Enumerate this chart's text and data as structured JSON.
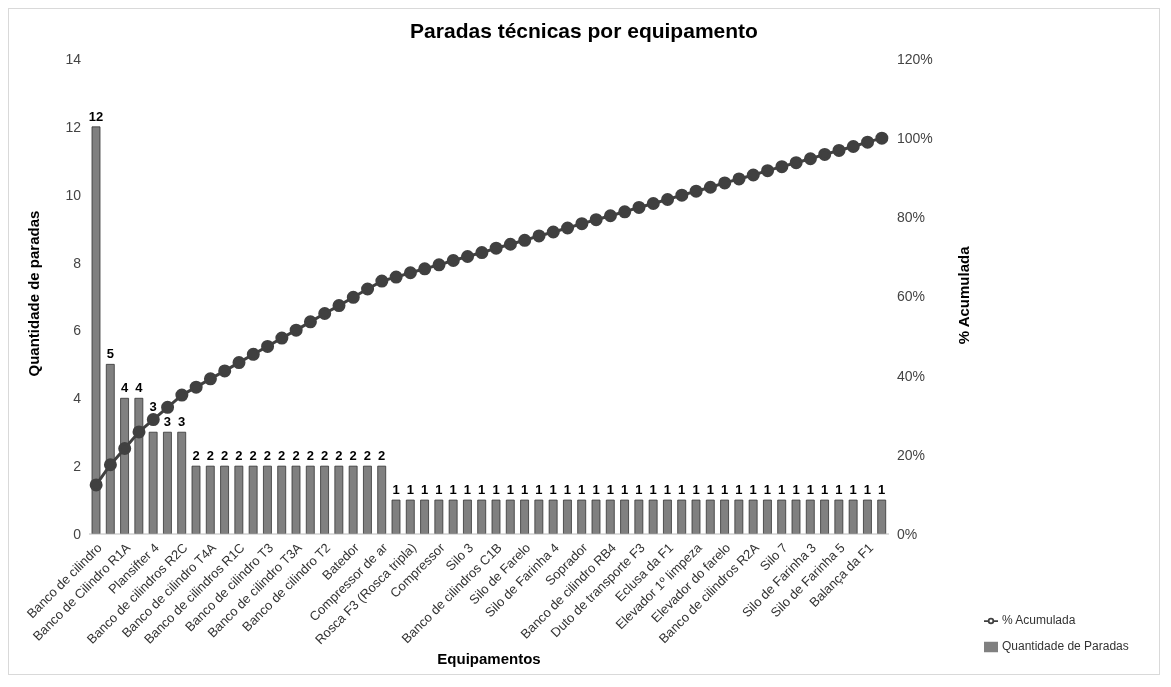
{
  "chart_data": {
    "type": "bar",
    "title": "Paradas técnicas por equipamento",
    "xlabel": "Equipamentos",
    "ylabel": "Quantidade de paradas",
    "y2label": "% Acumulada",
    "categories": [
      "Banco de cilindro",
      null,
      "Banco de Cilindro R1A",
      null,
      "Plansifter 4",
      null,
      "Banco de cilindros R2C",
      null,
      "Banco de cilindro T4A",
      null,
      "Banco de cilindros R1C",
      null,
      "Banco de cilindro T3",
      null,
      "Banco de cilindro T3A",
      null,
      "Banco de cilindro T2",
      null,
      "Batedor",
      null,
      "Compressor de ar",
      null,
      "Rosca F3 (Rosca tripla)",
      null,
      "Compressor",
      null,
      "Silo 3",
      null,
      "Banco de cilindros C1B",
      null,
      "Silo de Farelo",
      null,
      "Silo de Farinha 4",
      null,
      "Soprador",
      null,
      "Banco de cilindro RB4",
      null,
      "Duto de transporte F3",
      null,
      "Eclusa da F1",
      null,
      "Elevador 1º limpeza",
      null,
      "Elevador do farelo",
      null,
      "Banco de cilindros R2A",
      null,
      "Silo 7",
      null,
      "Silo de Farinha 3",
      null,
      "Silo de Farinha 5",
      null,
      "Balança da F1",
      null
    ],
    "series": [
      {
        "name": "Quantidade de Paradas",
        "color": "#808080",
        "values": [
          12,
          5,
          4,
          4,
          3,
          3,
          3,
          2,
          2,
          2,
          2,
          2,
          2,
          2,
          2,
          2,
          2,
          2,
          2,
          2,
          2,
          1,
          1,
          1,
          1,
          1,
          1,
          1,
          1,
          1,
          1,
          1,
          1,
          1,
          1,
          1,
          1,
          1,
          1,
          1,
          1,
          1,
          1,
          1,
          1,
          1,
          1,
          1,
          1,
          1,
          1,
          1,
          1,
          1,
          1,
          1
        ],
        "value_labels": [
          "12",
          "5",
          "4",
          "4",
          "3",
          "3",
          "3",
          "2",
          "2",
          "2",
          "2",
          "2",
          "2",
          "2",
          "2",
          "2",
          "2",
          "2",
          "2",
          "2",
          "2",
          "1",
          "1",
          "1",
          "1",
          "1",
          "1",
          "1",
          "1",
          "1",
          "1",
          "1",
          "1",
          "1",
          "1",
          "1",
          "1",
          "1",
          "1",
          "1",
          "1",
          "1",
          "1",
          "1",
          "1",
          "1",
          "1",
          "1",
          "1",
          "1",
          "1",
          "1",
          "1",
          "1",
          "1",
          "1"
        ]
      },
      {
        "name": "% Acumulada",
        "type": "line",
        "axis": "y2",
        "color": "#404040",
        "marker": "circle",
        "values": [
          12.4,
          17.5,
          21.6,
          25.8,
          28.9,
          32.0,
          35.1,
          37.1,
          39.2,
          41.2,
          43.3,
          45.4,
          47.4,
          49.5,
          51.5,
          53.6,
          55.7,
          57.7,
          59.8,
          61.9,
          63.9,
          64.9,
          66.0,
          67.0,
          68.0,
          69.1,
          70.1,
          71.1,
          72.2,
          73.2,
          74.2,
          75.3,
          76.3,
          77.3,
          78.4,
          79.4,
          80.4,
          81.4,
          82.5,
          83.5,
          84.5,
          85.6,
          86.6,
          87.6,
          88.7,
          89.7,
          90.7,
          91.8,
          92.8,
          93.8,
          94.8,
          95.9,
          96.9,
          97.9,
          99.0,
          100.0
        ]
      }
    ],
    "ylim": [
      0,
      14
    ],
    "yticks": [
      0,
      2,
      4,
      6,
      8,
      10,
      12,
      14
    ],
    "y2lim": [
      0,
      120
    ],
    "y2ticks": [
      {
        "value": 0,
        "label": "0%"
      },
      {
        "value": 20,
        "label": "20%"
      },
      {
        "value": 40,
        "label": "40%"
      },
      {
        "value": 60,
        "label": "60%"
      },
      {
        "value": 80,
        "label": "80%"
      },
      {
        "value": 100,
        "label": "100%"
      },
      {
        "value": 120,
        "label": "120%"
      }
    ],
    "grid": false,
    "legend": "bottom right"
  }
}
